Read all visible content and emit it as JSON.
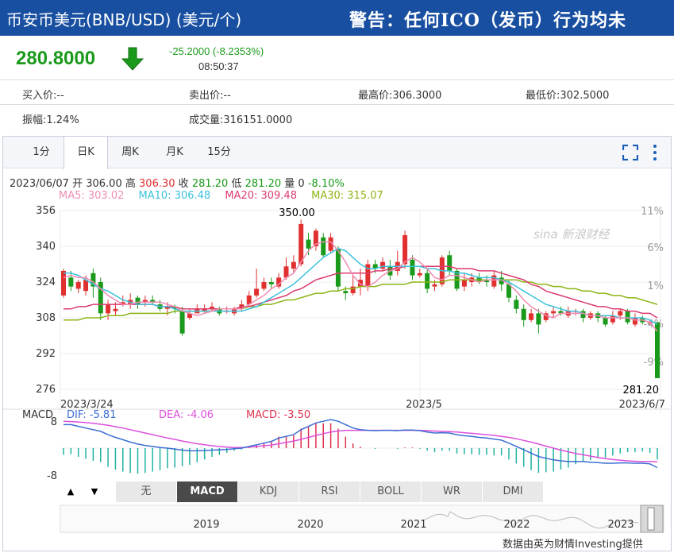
{
  "header": {
    "title": "币安币美元(BNB/USD) (美元/个)",
    "warning": "警告：任何ICO（发币）行为均未"
  },
  "quote": {
    "price": "280.8000",
    "change": "-25.2000 (-8.2353%)",
    "time": "08:50:37",
    "bid": "买入价:--",
    "ask": "卖出价:--",
    "high": "最高价:306.3000",
    "low": "最低价:302.5000",
    "amplitude": "振幅:1.24%",
    "volume": "成交量:316151.0000"
  },
  "tabs": [
    {
      "label": "1分"
    },
    {
      "label": "日K"
    },
    {
      "label": "周K"
    },
    {
      "label": "月K"
    },
    {
      "label": "15分"
    }
  ],
  "summary": {
    "date": "2023/06/07",
    "open_label": "开",
    "open": "306.00",
    "high_label": "高",
    "high": "306.30",
    "close_label": "收",
    "close": "281.20",
    "low_label": "低",
    "low": "281.20",
    "vol_label": "量",
    "vol": "0",
    "pct": "-8.10%"
  },
  "ma": {
    "ma5": "MA5: 303.02",
    "ma10": "MA10: 306.48",
    "ma20": "MA20: 309.48",
    "ma30": "MA30: 315.07"
  },
  "colors": {
    "up": "#e03030",
    "down": "#1a9a1a",
    "ma5": "#f08cb4",
    "ma10": "#3cc2dc",
    "ma20": "#dc3c6e",
    "ma30": "#8cb414",
    "dif": "#3c6ed2",
    "dea": "#dc50dc",
    "macd": "#dc3250"
  },
  "chart_data": {
    "type": "candlestick",
    "y_ticks": [
      "356",
      "340",
      "324",
      "308",
      "292",
      "276"
    ],
    "y_range": [
      276,
      356
    ],
    "pct_ticks": [
      "11%",
      "6%",
      "1%",
      "-4%",
      "-9%"
    ],
    "x_labels": [
      "2023/3/24",
      "2023/5",
      "2023/6/7"
    ],
    "max_label": "350.00",
    "min_label": "281.20",
    "watermark": "sina 新浪财经",
    "candles": [
      [
        318,
        329,
        330,
        317
      ],
      [
        326,
        322,
        329,
        320
      ],
      [
        321,
        324,
        325,
        319
      ],
      [
        320,
        325,
        327,
        318
      ],
      [
        328,
        322,
        330,
        317
      ],
      [
        324,
        310,
        326,
        307
      ],
      [
        310,
        314,
        316,
        307
      ],
      [
        311,
        312,
        315,
        309
      ],
      [
        314,
        315,
        318,
        313
      ],
      [
        314,
        316,
        319,
        312
      ],
      [
        317,
        314,
        318,
        312
      ],
      [
        315,
        316,
        318,
        313
      ],
      [
        316,
        315,
        318,
        314
      ],
      [
        314,
        312,
        316,
        311
      ],
      [
        312,
        313,
        315,
        309
      ],
      [
        313,
        312,
        314,
        310
      ],
      [
        311,
        301,
        313,
        300
      ],
      [
        308,
        310,
        312,
        307
      ],
      [
        310,
        312,
        314,
        310
      ],
      [
        311,
        312,
        314,
        310
      ],
      [
        312,
        313,
        315,
        311
      ],
      [
        312,
        310,
        313,
        309
      ],
      [
        311,
        311,
        313,
        310
      ],
      [
        310,
        312,
        313,
        309
      ],
      [
        312,
        314,
        316,
        311
      ],
      [
        314,
        318,
        320,
        313
      ],
      [
        318,
        321,
        330,
        317
      ],
      [
        321,
        324,
        326,
        320
      ],
      [
        324,
        323,
        326,
        321
      ],
      [
        322,
        326,
        328,
        321
      ],
      [
        326,
        331,
        335,
        325
      ],
      [
        330,
        333,
        336,
        328
      ],
      [
        332,
        350,
        352,
        331
      ],
      [
        343,
        339,
        346,
        336
      ],
      [
        340,
        347,
        348,
        338
      ],
      [
        344,
        336,
        346,
        335
      ],
      [
        338,
        344,
        346,
        337
      ],
      [
        339,
        322,
        340,
        320
      ],
      [
        320,
        319,
        322,
        316
      ],
      [
        319,
        322,
        327,
        318
      ],
      [
        322,
        325,
        330,
        318
      ],
      [
        322,
        332,
        334,
        320
      ],
      [
        332,
        330,
        334,
        328
      ],
      [
        330,
        333,
        335,
        329
      ],
      [
        331,
        327,
        334,
        325
      ],
      [
        329,
        333,
        338,
        327
      ],
      [
        332,
        345,
        347,
        330
      ],
      [
        334,
        327,
        336,
        325
      ],
      [
        327,
        328,
        330,
        326
      ],
      [
        328,
        321,
        330,
        319
      ],
      [
        322,
        323,
        325,
        320
      ],
      [
        323,
        335,
        336,
        322
      ],
      [
        336,
        329,
        338,
        327
      ],
      [
        329,
        321,
        330,
        320
      ],
      [
        322,
        325,
        328,
        320
      ],
      [
        324,
        326,
        328,
        322
      ],
      [
        326,
        324,
        328,
        323
      ],
      [
        325,
        324,
        327,
        322
      ],
      [
        322,
        327,
        329,
        321
      ],
      [
        326,
        323,
        329,
        320
      ],
      [
        323,
        317,
        325,
        315
      ],
      [
        316,
        312,
        318,
        310
      ],
      [
        312,
        307,
        314,
        304
      ],
      [
        307,
        310,
        312,
        306
      ],
      [
        310,
        305,
        312,
        301
      ],
      [
        307,
        310,
        311,
        306
      ],
      [
        310,
        311,
        313,
        308
      ],
      [
        311,
        310,
        313,
        309
      ],
      [
        309,
        311,
        313,
        308
      ],
      [
        311,
        311,
        312,
        309
      ],
      [
        311,
        308,
        312,
        306
      ],
      [
        308,
        310,
        311,
        307
      ],
      [
        310,
        308,
        311,
        306
      ],
      [
        308,
        305,
        309,
        304
      ],
      [
        306,
        309,
        311,
        305
      ],
      [
        309,
        311,
        312,
        307
      ],
      [
        311,
        306,
        312,
        305
      ],
      [
        305,
        308,
        310,
        304
      ],
      [
        308,
        306,
        309,
        305
      ],
      [
        306,
        306,
        307,
        305
      ],
      [
        306,
        281,
        306,
        281
      ]
    ],
    "ma5": [
      326,
      327,
      326,
      326,
      324,
      321,
      318,
      316,
      314,
      314,
      315,
      315,
      315,
      315,
      314,
      313,
      311,
      310,
      309,
      310,
      311,
      312,
      312,
      312,
      312,
      314,
      316,
      318,
      321,
      323,
      326,
      328,
      333,
      338,
      341,
      342,
      342,
      338,
      333,
      327,
      323,
      322,
      324,
      327,
      329,
      330,
      333,
      335,
      333,
      330,
      326,
      325,
      327,
      327,
      326,
      325,
      324,
      325,
      325,
      325,
      323,
      320,
      316,
      313,
      311,
      309,
      308,
      310,
      310,
      310,
      310,
      309,
      309,
      308,
      308,
      308,
      308,
      307,
      307,
      306,
      302
    ],
    "ma10": [
      328,
      328,
      327,
      325,
      323,
      321,
      320,
      318,
      316,
      315,
      314,
      314,
      314,
      313,
      313,
      312,
      311,
      311,
      311,
      311,
      311,
      311,
      311,
      311,
      311,
      312,
      313,
      315,
      317,
      319,
      321,
      323,
      326,
      329,
      332,
      335,
      337,
      339,
      338,
      335,
      332,
      330,
      330,
      331,
      331,
      331,
      331,
      331,
      331,
      330,
      330,
      329,
      329,
      328,
      328,
      327,
      326,
      326,
      326,
      325,
      324,
      322,
      320,
      318,
      316,
      314,
      313,
      312,
      311,
      311,
      310,
      309,
      309,
      309,
      309,
      308,
      308,
      308,
      308,
      307,
      305
    ],
    "ma20": [
      312,
      312,
      313,
      313,
      314,
      314,
      314,
      314,
      314,
      314,
      314,
      314,
      314,
      313,
      313,
      313,
      312,
      312,
      312,
      312,
      312,
      312,
      312,
      312,
      313,
      313,
      314,
      315,
      316,
      317,
      318,
      320,
      321,
      323,
      325,
      326,
      327,
      328,
      328,
      328,
      328,
      328,
      329,
      329,
      330,
      330,
      331,
      331,
      331,
      331,
      331,
      331,
      331,
      330,
      330,
      330,
      329,
      329,
      329,
      328,
      327,
      326,
      325,
      323,
      322,
      320,
      319,
      318,
      317,
      316,
      315,
      314,
      313,
      313,
      312,
      312,
      311,
      311,
      310,
      310,
      308
    ],
    "ma30": [
      307,
      307,
      307,
      308,
      308,
      308,
      309,
      309,
      309,
      310,
      310,
      310,
      310,
      310,
      310,
      311,
      311,
      311,
      311,
      311,
      311,
      312,
      312,
      312,
      312,
      313,
      313,
      314,
      314,
      315,
      316,
      316,
      317,
      318,
      319,
      319,
      320,
      320,
      321,
      321,
      322,
      322,
      322,
      323,
      323,
      323,
      323,
      324,
      324,
      324,
      324,
      324,
      325,
      325,
      325,
      325,
      325,
      325,
      325,
      325,
      325,
      325,
      324,
      324,
      323,
      323,
      322,
      322,
      321,
      321,
      320,
      320,
      319,
      319,
      318,
      318,
      317,
      317,
      316,
      315,
      314
    ],
    "macd_panel": {
      "label": "MACD",
      "dif_label": "DIF: -5.81",
      "dea_label": "DEA: -4.06",
      "macd_label": "MACD: -3.50",
      "y_ticks": [
        "8",
        "-8"
      ],
      "y_range": [
        -9,
        9
      ],
      "dif": [
        7,
        7,
        6.5,
        6,
        5.5,
        5,
        4,
        3.2,
        2.5,
        1.8,
        1.2,
        0.8,
        0.5,
        0.2,
        0,
        -0.3,
        -0.6,
        -0.8,
        -0.8,
        -0.7,
        -0.6,
        -0.5,
        -0.4,
        -0.2,
        0,
        0.5,
        1,
        1.5,
        2,
        3,
        3.5,
        4,
        5.5,
        6.5,
        7.5,
        8,
        8.5,
        8,
        7,
        6,
        5.5,
        5.3,
        5.2,
        5.3,
        5.3,
        5.2,
        5.4,
        5.4,
        5.2,
        4.8,
        4.5,
        4.6,
        4.5,
        4,
        3.7,
        3.5,
        3.2,
        3,
        2.7,
        2.4,
        1.5,
        0.5,
        -0.5,
        -1.5,
        -2.5,
        -3,
        -3.5,
        -3.8,
        -4,
        -4,
        -4,
        -4.2,
        -4.3,
        -4.5,
        -4.5,
        -4.4,
        -4.4,
        -4.5,
        -4.5,
        -4.7,
        -5.8
      ],
      "dea": [
        8,
        7.9,
        7.8,
        7.6,
        7.4,
        7.1,
        6.8,
        6.4,
        6,
        5.5,
        5,
        4.5,
        4,
        3.5,
        3,
        2.6,
        2.1,
        1.7,
        1.3,
        1,
        0.7,
        0.5,
        0.3,
        0.2,
        0.2,
        0.3,
        0.5,
        0.7,
        0.9,
        1.3,
        1.7,
        2.1,
        2.6,
        3.2,
        3.8,
        4.3,
        4.8,
        5.1,
        5.3,
        5.3,
        5.3,
        5.3,
        5.3,
        5.3,
        5.3,
        5.3,
        5.3,
        5.3,
        5.3,
        5.2,
        5.1,
        5,
        4.9,
        4.8,
        4.6,
        4.4,
        4.2,
        4,
        3.8,
        3.5,
        3.2,
        2.8,
        2.3,
        1.8,
        1.2,
        0.6,
        0,
        -0.6,
        -1.1,
        -1.6,
        -2,
        -2.4,
        -2.8,
        -3.1,
        -3.4,
        -3.6,
        -3.8,
        -3.9,
        -4,
        -4,
        -4.1
      ]
    },
    "timeline": {
      "years": [
        "2019",
        "2020",
        "2021",
        "2022",
        "2023"
      ]
    }
  },
  "indicators": {
    "up": "▲",
    "down": "▼",
    "items": [
      "无",
      "MACD",
      "KDJ",
      "RSI",
      "BOLL",
      "WR",
      "DMI"
    ],
    "active": "MACD"
  },
  "source": "数据由英为财情Investing提供"
}
